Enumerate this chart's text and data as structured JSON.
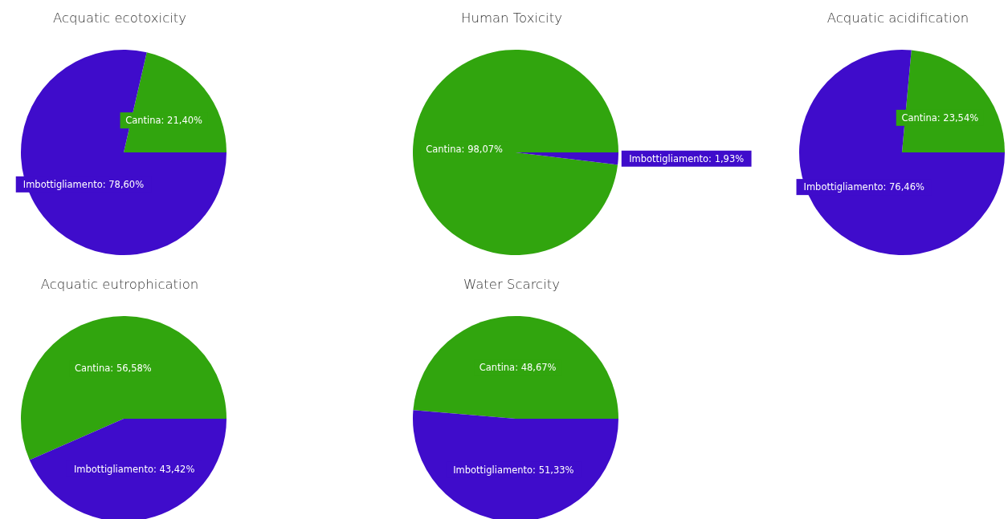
{
  "chart_data": [
    {
      "type": "pie",
      "title": "Acquatic ecotoxicity",
      "categories": [
        "Cantina",
        "Imbottigliamento"
      ],
      "values": [
        21.4,
        78.6
      ],
      "colors": [
        "#31a50e",
        "#3f0ccb"
      ],
      "value_labels": [
        "21,40%",
        "78,60%"
      ]
    },
    {
      "type": "pie",
      "title": "Human Toxicity",
      "categories": [
        "Cantina",
        "Imbottigliamento"
      ],
      "values": [
        98.07,
        1.93
      ],
      "colors": [
        "#31a50e",
        "#3f0ccb"
      ],
      "value_labels": [
        "98,07%",
        "1,93%"
      ]
    },
    {
      "type": "pie",
      "title": "Acquatic acidification",
      "categories": [
        "Cantina",
        "Imbottigliamento"
      ],
      "values": [
        23.54,
        76.46
      ],
      "colors": [
        "#31a50e",
        "#3f0ccb"
      ],
      "value_labels": [
        "23,54%",
        "76,46%"
      ]
    },
    {
      "type": "pie",
      "title": "Acquatic eutrophication",
      "categories": [
        "Cantina",
        "Imbottigliamento"
      ],
      "values": [
        56.58,
        43.42
      ],
      "colors": [
        "#31a50e",
        "#3f0ccb"
      ],
      "value_labels": [
        "56,58%",
        "43,42%"
      ]
    },
    {
      "type": "pie",
      "title": "Water Scarcity",
      "categories": [
        "Cantina",
        "Imbottigliamento"
      ],
      "values": [
        48.67,
        51.33
      ],
      "colors": [
        "#31a50e",
        "#3f0ccb"
      ],
      "value_labels": [
        "48,67%",
        "51,33%"
      ]
    }
  ]
}
